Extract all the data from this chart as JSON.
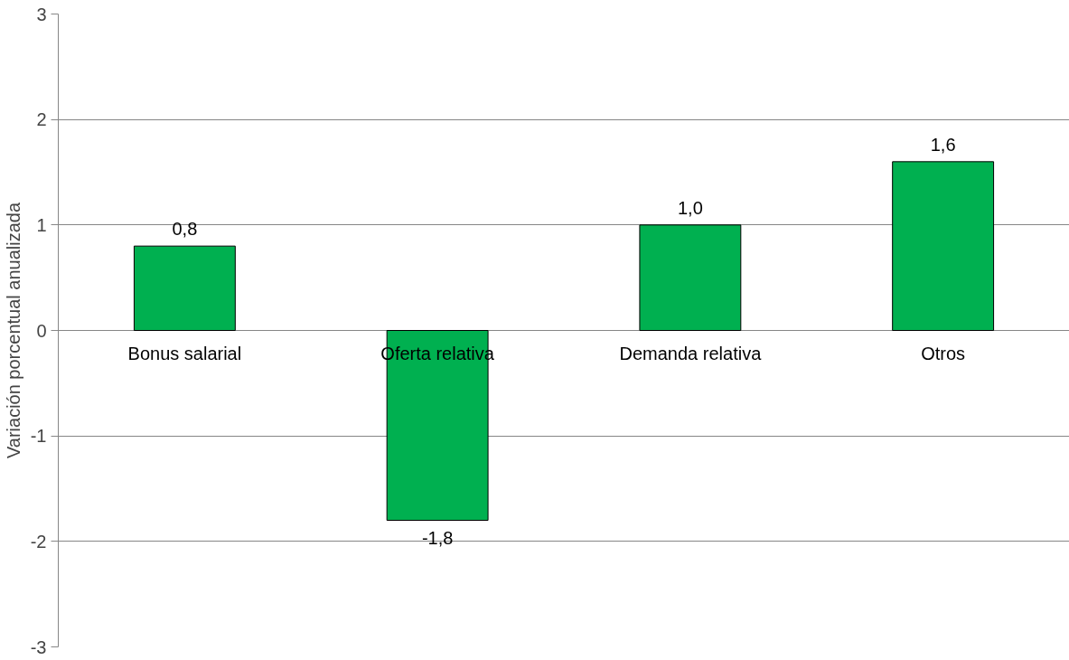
{
  "chart_data": {
    "type": "bar",
    "ylabel": "Variación porcentual anualizada",
    "categories": [
      "Bonus salarial",
      "Oferta relativa",
      "Demanda relativa",
      "Otros"
    ],
    "values": [
      0.8,
      -1.8,
      1.0,
      1.6
    ],
    "value_labels": [
      "0,8",
      "-1,8",
      "1,0",
      "1,6"
    ],
    "color": "#00b050",
    "ylim": [
      -3,
      3
    ],
    "yticks": [
      -3,
      -2,
      -1,
      0,
      1,
      2,
      3
    ],
    "grid": "y"
  }
}
